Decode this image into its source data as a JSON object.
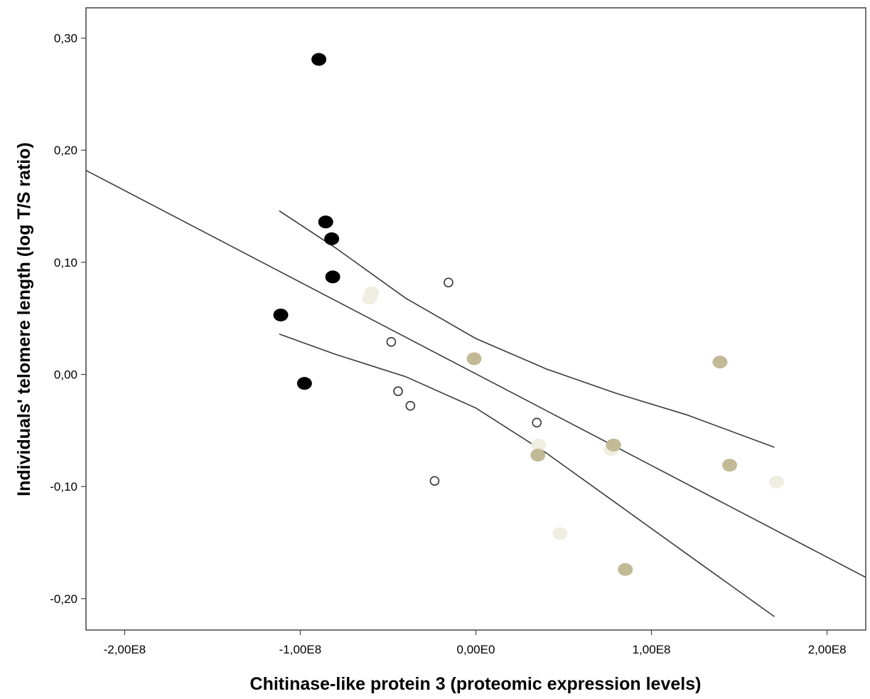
{
  "chart_data": {
    "type": "scatter",
    "title": "",
    "xlabel": "Chitinase-like protein 3 (proteomic expression levels)",
    "ylabel": "Individuals' telomere length (log T/S ratio)",
    "xlim": [
      -222000000.0,
      222000000.0
    ],
    "ylim": [
      -0.228,
      0.327
    ],
    "x_ticks": [
      {
        "value": -200000000.0,
        "label": "-2,00E8"
      },
      {
        "value": -100000000.0,
        "label": "-1,00E8"
      },
      {
        "value": 0,
        "label": "0,00E0"
      },
      {
        "value": 100000000.0,
        "label": "1,00E8"
      },
      {
        "value": 200000000.0,
        "label": "2,00E8"
      }
    ],
    "y_ticks": [
      {
        "value": 0.3,
        "label": "0,30"
      },
      {
        "value": 0.2,
        "label": "0,20"
      },
      {
        "value": 0.1,
        "label": "0,10"
      },
      {
        "value": 0.0,
        "label": "0,00"
      },
      {
        "value": -0.1,
        "label": "-0,10"
      },
      {
        "value": -0.2,
        "label": "-0,20"
      }
    ],
    "grid": false,
    "series": [
      {
        "marker": "filled",
        "color": "#000000",
        "points": [
          {
            "x": -89400000.0,
            "y": 0.281
          },
          {
            "x": -85500000.0,
            "y": 0.136
          },
          {
            "x": -82100000.0,
            "y": 0.121
          },
          {
            "x": -81500000.0,
            "y": 0.087
          },
          {
            "x": -111100000.0,
            "y": 0.053
          },
          {
            "x": -97600000.0,
            "y": -0.008
          }
        ]
      },
      {
        "marker": "hollow",
        "color": "#333333",
        "points": [
          {
            "x": -15600000.0,
            "y": 0.082
          },
          {
            "x": -48200000.0,
            "y": 0.029
          },
          {
            "x": -44300000.0,
            "y": -0.015
          },
          {
            "x": -37300000.0,
            "y": -0.028
          },
          {
            "x": 34700000.0,
            "y": -0.043
          },
          {
            "x": -23500000.0,
            "y": -0.095
          }
        ]
      },
      {
        "marker": "filled",
        "color": "#efeee1",
        "points": [
          {
            "x": -59200000.0,
            "y": 0.073
          },
          {
            "x": -60500000.0,
            "y": 0.068
          },
          {
            "x": 35800000.0,
            "y": -0.063
          },
          {
            "x": 77000000.0,
            "y": -0.067
          },
          {
            "x": 171200000.0,
            "y": -0.096
          },
          {
            "x": 48000000.0,
            "y": -0.142
          }
        ]
      },
      {
        "marker": "filled",
        "color": "#c2b996",
        "points": [
          {
            "x": -1000000.0,
            "y": 0.014
          },
          {
            "x": 139000000.0,
            "y": 0.011
          },
          {
            "x": 78400000.0,
            "y": -0.063
          },
          {
            "x": 35300000.0,
            "y": -0.072
          },
          {
            "x": 144500000.0,
            "y": -0.081
          },
          {
            "x": 85100000.0,
            "y": -0.174
          }
        ]
      }
    ],
    "fit_line": {
      "x": [
        -222000000.0,
        222000000.0
      ],
      "y": [
        0.182,
        -0.181
      ]
    },
    "confidence_upper": {
      "x": [
        -112000000.0,
        -80000000.0,
        -40000000.0,
        0,
        40000000.0,
        80000000.0,
        120000000.0,
        170000000.0
      ],
      "y": [
        0.146,
        0.113,
        0.068,
        0.032,
        0.005,
        -0.017,
        -0.036,
        -0.065
      ]
    },
    "confidence_lower": {
      "x": [
        -112000000.0,
        -80000000.0,
        -40000000.0,
        0,
        40000000.0,
        80000000.0,
        120000000.0,
        170000000.0
      ],
      "y": [
        0.036,
        0.018,
        -0.002,
        -0.03,
        -0.07,
        -0.115,
        -0.16,
        -0.216
      ]
    }
  }
}
